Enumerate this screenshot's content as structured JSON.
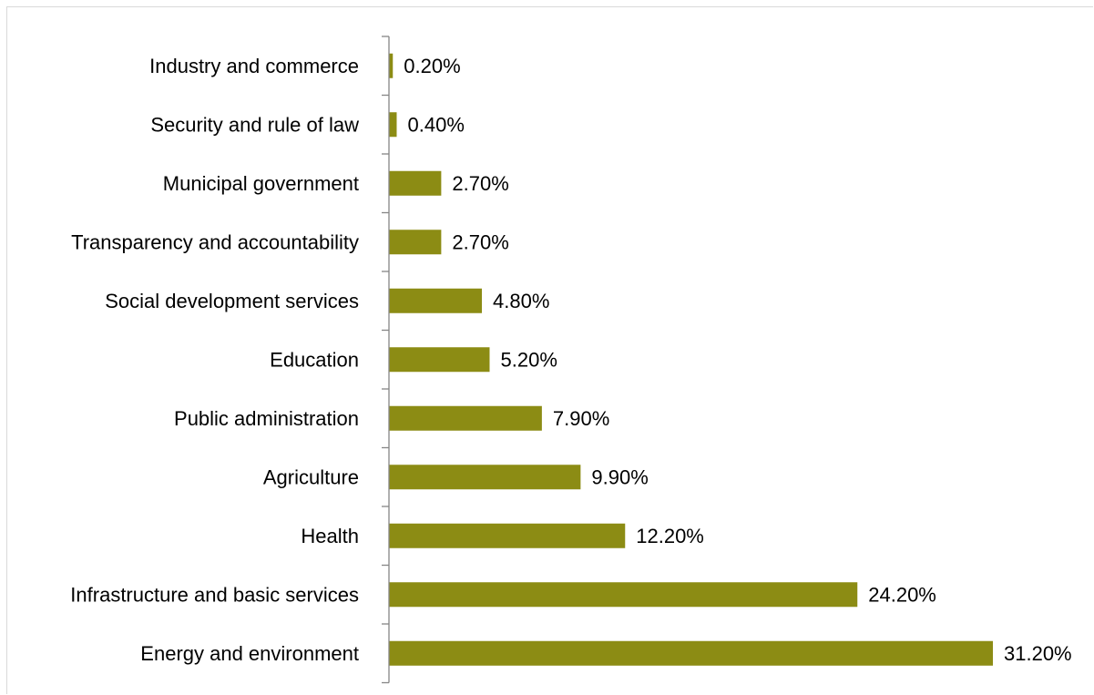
{
  "chart_data": {
    "type": "bar",
    "orientation": "horizontal",
    "title": "",
    "xlabel": "",
    "ylabel": "",
    "categories": [
      "Industry and commerce",
      "Security and rule of law",
      "Municipal government",
      "Transparency and accountability",
      "Social development services",
      "Education",
      "Public administration",
      "Agriculture",
      "Health",
      "Infrastructure and basic services",
      "Energy and environment"
    ],
    "values": [
      0.2,
      0.4,
      2.7,
      2.7,
      4.8,
      5.2,
      7.9,
      9.9,
      12.2,
      24.2,
      31.2
    ],
    "value_labels": [
      "0.20%",
      "0.40%",
      "2.70%",
      "2.70%",
      "4.80%",
      "5.20%",
      "7.90%",
      "9.90%",
      "12.20%",
      "24.20%",
      "31.20%"
    ],
    "xlim": [
      0,
      31.2
    ],
    "bar_color": "#8c8c14",
    "axis_color": "#868686",
    "grid": false,
    "legend": "none"
  }
}
